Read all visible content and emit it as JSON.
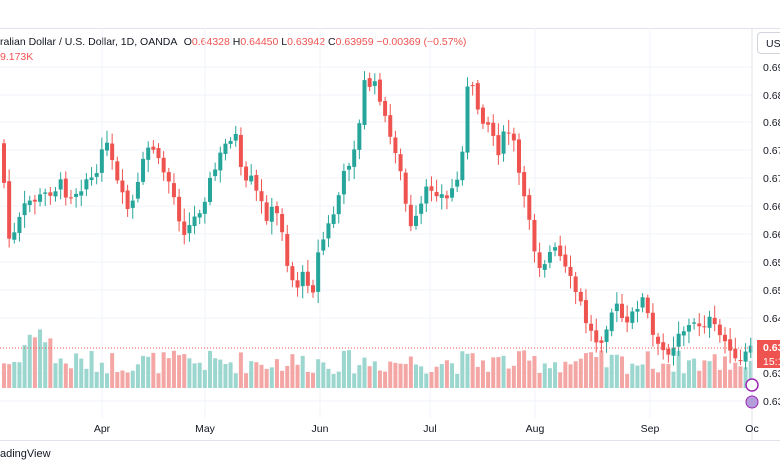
{
  "legend": {
    "symbol": "ralian Dollar / U.S. Dollar, 1D, OANDA",
    "o_label": "O",
    "o": "0.64328",
    "h_label": "H",
    "h": "0.64450",
    "l_label": "L",
    "l": "0.63942",
    "c_label": "C",
    "c": "0.63959",
    "change": "−0.00369 (−0.57%)",
    "volume": "9.173K"
  },
  "symbol_button": "USD",
  "brand": "adingView",
  "price_labels": {
    "current": "0.63",
    "countdown": "15:1"
  },
  "colors": {
    "up": "#26a69a",
    "down": "#ef5350",
    "vol_up": "#9bd6cf",
    "vol_down": "#f4a6a5"
  },
  "chart_data": {
    "type": "candlestick",
    "y_ticks": [
      "0.69",
      "0.68",
      "0.68",
      "0.67",
      "0.67",
      "0.66",
      "0.66",
      "0.65",
      "0.65",
      "0.64",
      "0.63",
      "0.63"
    ],
    "x_ticks": [
      "Apr",
      "May",
      "Jun",
      "Jul",
      "Aug",
      "Sep",
      "Oc"
    ],
    "last_close": 0.63959
  }
}
